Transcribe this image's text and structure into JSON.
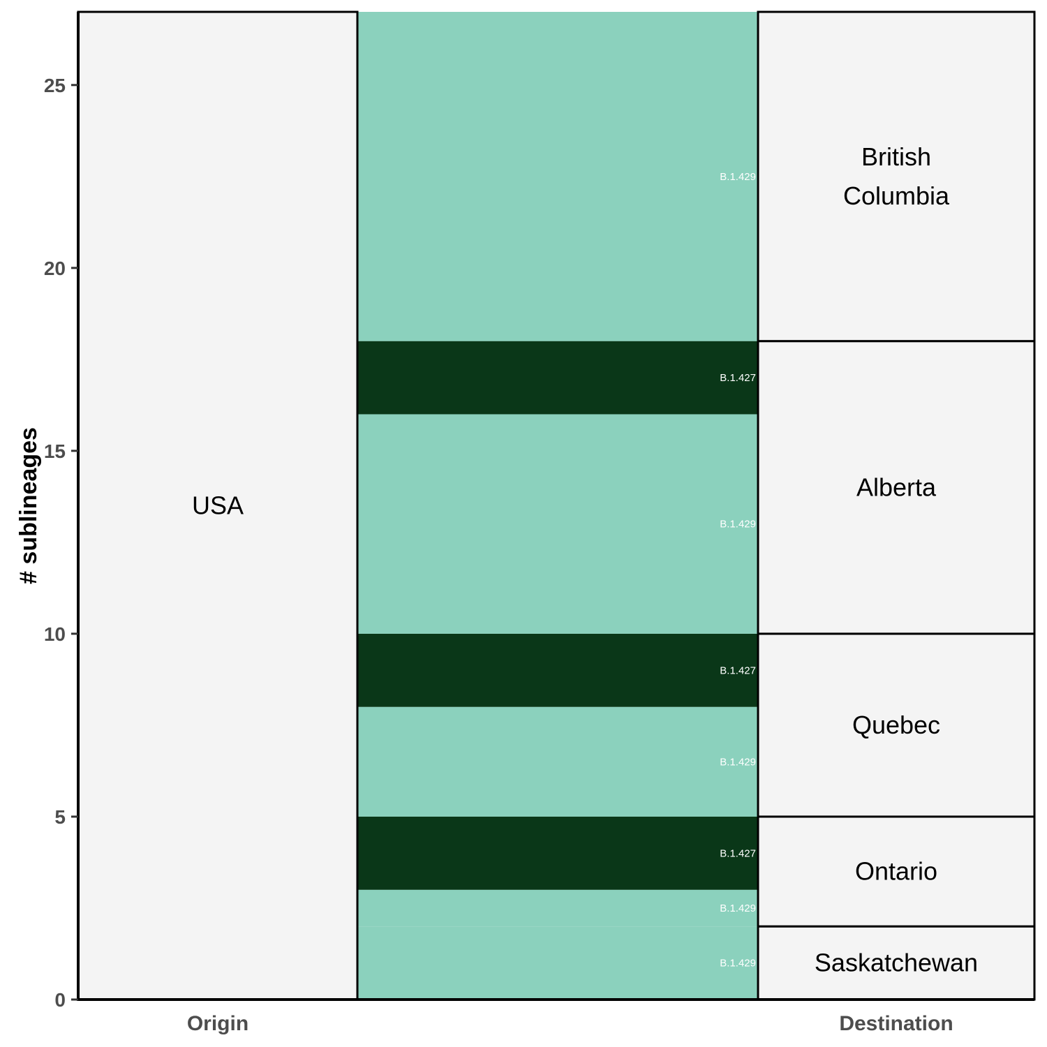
{
  "chart_data": {
    "type": "alluvial",
    "ylabel": "# sublineages",
    "ylim": [
      0,
      27
    ],
    "yticks": [
      0,
      5,
      10,
      15,
      20,
      25
    ],
    "axes": [
      "Origin",
      "Destination"
    ],
    "strata": {
      "Origin": [
        {
          "label": "USA",
          "from": 0,
          "to": 27
        }
      ],
      "Destination": [
        {
          "label": "Saskatchewan",
          "from": 0,
          "to": 2
        },
        {
          "label": "Ontario",
          "from": 2,
          "to": 5
        },
        {
          "label": "Quebec",
          "from": 5,
          "to": 10
        },
        {
          "label": "Alberta",
          "from": 10,
          "to": 18
        },
        {
          "label": "British Columbia",
          "from": 18,
          "to": 27
        }
      ]
    },
    "flows": [
      {
        "label": "B.1.429",
        "from": 0,
        "to": 2,
        "color": "#8bd1bd"
      },
      {
        "label": "B.1.429",
        "from": 2,
        "to": 3,
        "color": "#8bd1bd"
      },
      {
        "label": "B.1.427",
        "from": 3,
        "to": 5,
        "color": "#0a3718"
      },
      {
        "label": "B.1.429",
        "from": 5,
        "to": 8,
        "color": "#8bd1bd"
      },
      {
        "label": "B.1.427",
        "from": 8,
        "to": 10,
        "color": "#0a3718"
      },
      {
        "label": "B.1.429",
        "from": 10,
        "to": 16,
        "color": "#8bd1bd"
      },
      {
        "label": "B.1.427",
        "from": 16,
        "to": 18,
        "color": "#0a3718"
      },
      {
        "label": "B.1.429",
        "from": 18,
        "to": 27,
        "color": "#8bd1bd"
      }
    ],
    "colors": {
      "B.1.429": "#8bd1bd",
      "B.1.427": "#0a3718",
      "stratum_fill": "#f4f4f4"
    },
    "grid": false,
    "legend": "none"
  }
}
